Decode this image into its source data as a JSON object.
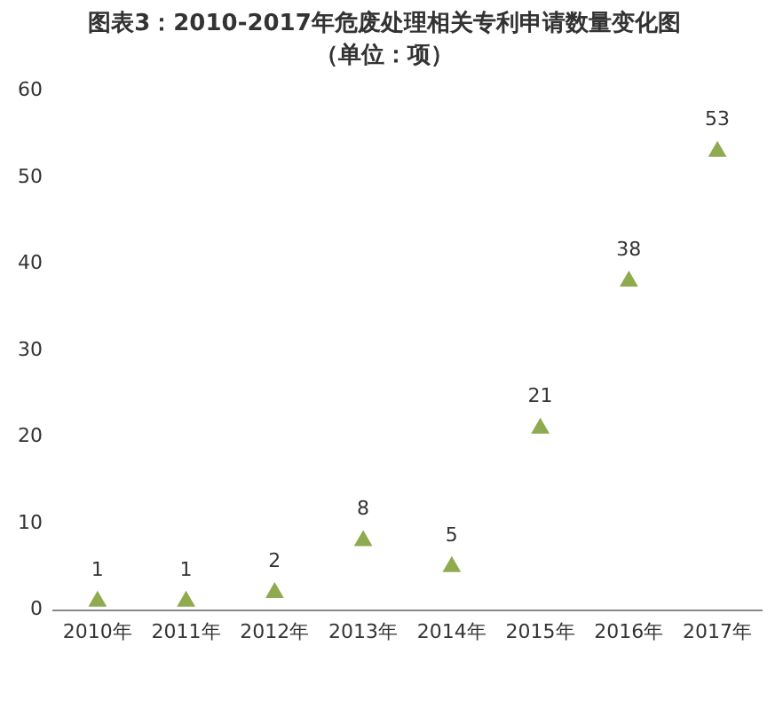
{
  "chart_data": {
    "type": "scatter",
    "title": "图表3：2010-2017年危废处理相关专利申请数量变化图",
    "subtitle": "（单位：项）",
    "categories": [
      "2010年",
      "2011年",
      "2012年",
      "2013年",
      "2014年",
      "2015年",
      "2016年",
      "2017年"
    ],
    "values": [
      1,
      1,
      2,
      8,
      5,
      21,
      38,
      53
    ],
    "color": "#8faa4f",
    "marker": "triangle",
    "data_labels": true,
    "ylim": [
      0,
      60
    ],
    "yticks": [
      0,
      10,
      20,
      30,
      40,
      50,
      60
    ],
    "grid": false,
    "legend": false
  }
}
